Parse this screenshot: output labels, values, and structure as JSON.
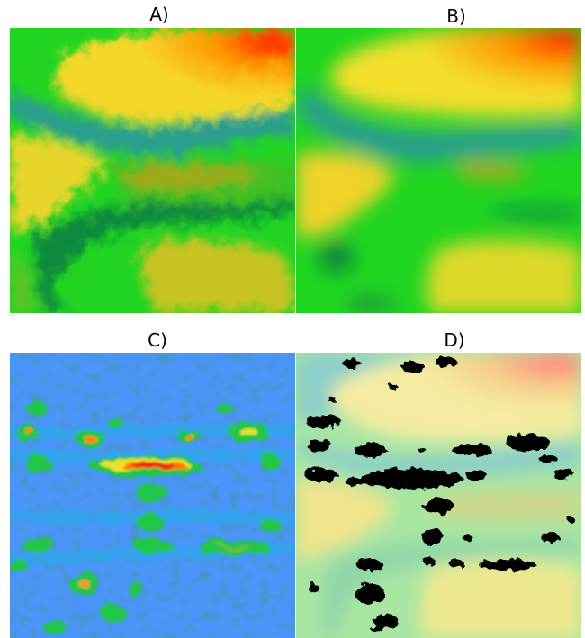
{
  "panels": [
    {
      "label": "A)",
      "description_icon": "rough-height-field"
    },
    {
      "label": "B)",
      "description_icon": "smoothed-height-field"
    },
    {
      "label": "C)",
      "description_icon": "noise-difference-field"
    },
    {
      "label": "D)",
      "description_icon": "thresholded-overlay"
    }
  ],
  "colors": {
    "red": "#ff2200",
    "orange": "#ff9a00",
    "yellow": "#f5ee2a",
    "olive": "#b8b21e",
    "green": "#22d422",
    "dark_green": "#0a8a3c",
    "teal": "#2a9e90",
    "blue": "#1a3cf0",
    "light_blue": "#29a6e8",
    "mask_black": "#000000"
  }
}
